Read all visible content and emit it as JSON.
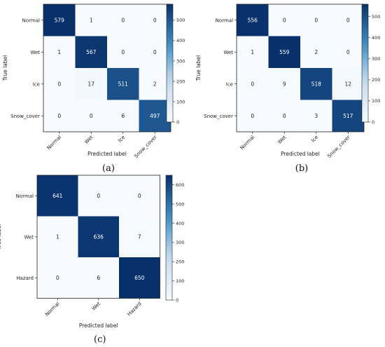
{
  "colormap": {
    "low": "#f7fbff",
    "high": "#08306b"
  },
  "chart_data": [
    {
      "type": "heatmap",
      "caption": "(a)",
      "labels": [
        "Normal",
        "Wet",
        "Ice",
        "Snow_cover"
      ],
      "matrix": [
        [
          579,
          1,
          0,
          0
        ],
        [
          1,
          567,
          0,
          0
        ],
        [
          0,
          17,
          511,
          2
        ],
        [
          0,
          0,
          6,
          497
        ]
      ],
      "xlabel": "Predicted label",
      "ylabel": "True label",
      "colorbar": {
        "min": 0,
        "max": 579,
        "ticks": [
          0,
          100,
          200,
          300,
          400,
          500
        ]
      }
    },
    {
      "type": "heatmap",
      "caption": "(b)",
      "labels": [
        "Normal",
        "Wet",
        "Ice",
        "Snow_cover"
      ],
      "matrix": [
        [
          556,
          0,
          0,
          0
        ],
        [
          1,
          559,
          2,
          0
        ],
        [
          0,
          9,
          518,
          12
        ],
        [
          0,
          0,
          3,
          517
        ]
      ],
      "xlabel": "Predicted label",
      "ylabel": "True label",
      "colorbar": {
        "min": 0,
        "max": 559,
        "ticks": [
          0,
          100,
          200,
          300,
          400,
          500
        ]
      }
    },
    {
      "type": "heatmap",
      "caption": "(c)",
      "labels": [
        "Normal",
        "Wet",
        "Hazard"
      ],
      "matrix": [
        [
          641,
          0,
          0
        ],
        [
          1,
          636,
          7
        ],
        [
          0,
          6,
          650
        ]
      ],
      "xlabel": "Predicted label",
      "ylabel": "True label",
      "colorbar": {
        "min": 0,
        "max": 650,
        "ticks": [
          0,
          100,
          200,
          300,
          400,
          500,
          600
        ]
      }
    }
  ]
}
